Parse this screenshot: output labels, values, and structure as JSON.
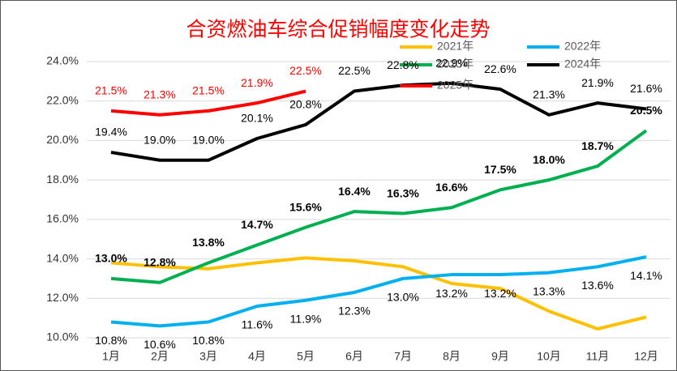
{
  "chart_data": {
    "type": "line",
    "title": "合资燃油车综合促销幅度变化走势",
    "categories": [
      "1月",
      "2月",
      "3月",
      "4月",
      "5月",
      "6月",
      "7月",
      "8月",
      "9月",
      "10月",
      "11月",
      "12月"
    ],
    "ylim": [
      10,
      24
    ],
    "yticks": [
      {
        "value": 10,
        "label": "10.0%"
      },
      {
        "value": 12,
        "label": "12.0%"
      },
      {
        "value": 14,
        "label": "14.0%"
      },
      {
        "value": 16,
        "label": "16.0%"
      },
      {
        "value": 18,
        "label": "18.0%"
      },
      {
        "value": 20,
        "label": "20.0%"
      },
      {
        "value": 22,
        "label": "22.0%"
      },
      {
        "value": 24,
        "label": "24.0%"
      }
    ],
    "grid": true,
    "series": [
      {
        "name": "2021年",
        "color": "#FFC000",
        "values": [
          13.8,
          13.6,
          13.5,
          13.8,
          14.05,
          13.9,
          13.6,
          12.75,
          12.5,
          11.35,
          10.45,
          11.05
        ]
      },
      {
        "name": "2022年",
        "color": "#00B0F0",
        "values": [
          10.8,
          10.6,
          10.8,
          11.6,
          11.9,
          12.3,
          13.0,
          13.2,
          13.2,
          13.3,
          13.6,
          14.1
        ],
        "value_labels": [
          "10.8%",
          "10.6%",
          "10.8%",
          "11.6%",
          "11.9%",
          "12.3%",
          "13.0%",
          "13.2%",
          "13.2%",
          "13.3%",
          "13.6%",
          "14.1%"
        ]
      },
      {
        "name": "2023年",
        "color": "#00B050",
        "values": [
          13.0,
          12.8,
          13.8,
          14.7,
          15.6,
          16.4,
          16.3,
          16.6,
          17.5,
          18.0,
          18.7,
          20.5
        ],
        "value_labels": [
          "13.0%",
          "12.8%",
          "13.8%",
          "14.7%",
          "15.6%",
          "16.4%",
          "16.3%",
          "16.6%",
          "17.5%",
          "18.0%",
          "18.7%",
          "20.5%"
        ]
      },
      {
        "name": "2024年",
        "color": "#000000",
        "values": [
          19.4,
          19.0,
          19.0,
          20.1,
          20.8,
          22.5,
          22.8,
          22.9,
          22.6,
          21.3,
          21.9,
          21.6
        ],
        "value_labels": [
          "19.4%",
          "19.0%",
          "19.0%",
          "20.1%",
          "20.8%",
          "22.5%",
          "22.8%",
          "22.9%",
          "22.6%",
          "21.3%",
          "21.9%",
          "21.6%"
        ]
      },
      {
        "name": "2025年",
        "color": "#FF0000",
        "values": [
          21.5,
          21.3,
          21.5,
          21.9,
          22.5,
          null,
          null,
          null,
          null,
          null,
          null,
          null
        ],
        "value_labels": [
          "21.5%",
          "21.3%",
          "21.5%",
          "21.9%",
          "22.5%",
          null,
          null,
          null,
          null,
          null,
          null,
          null
        ]
      }
    ]
  }
}
